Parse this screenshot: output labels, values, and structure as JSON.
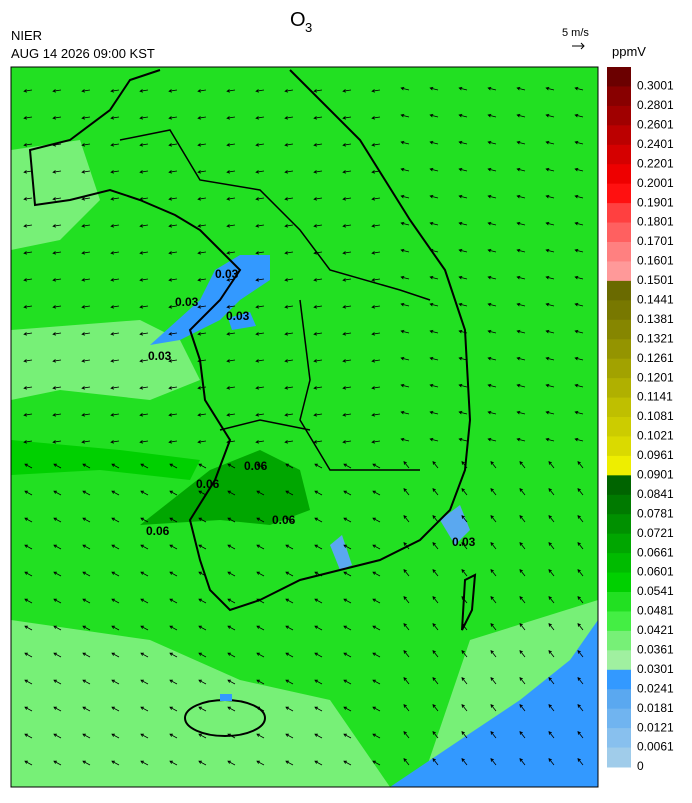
{
  "header": {
    "title": "O",
    "title_subscript": "3",
    "agency": "NIER",
    "timestamp": "AUG 14 2026 09:00 KST",
    "wind_scale": "5 m/s",
    "unit": "ppmV"
  },
  "colorbar": [
    {
      "label": "0.3001",
      "color": "#6b0000"
    },
    {
      "label": "0.2801",
      "color": "#880000"
    },
    {
      "label": "0.2601",
      "color": "#a00000"
    },
    {
      "label": "0.2401",
      "color": "#bb0000"
    },
    {
      "label": "0.2201",
      "color": "#d50000"
    },
    {
      "label": "0.2001",
      "color": "#ee0000"
    },
    {
      "label": "0.1901",
      "color": "#ff1010"
    },
    {
      "label": "0.1801",
      "color": "#ff4040"
    },
    {
      "label": "0.1701",
      "color": "#ff6060"
    },
    {
      "label": "0.1601",
      "color": "#ff8080"
    },
    {
      "label": "0.1501",
      "color": "#ff9999"
    },
    {
      "label": "0.1441",
      "color": "#6a6a00"
    },
    {
      "label": "0.1381",
      "color": "#787800"
    },
    {
      "label": "0.1321",
      "color": "#868600"
    },
    {
      "label": "0.1261",
      "color": "#949400"
    },
    {
      "label": "0.1201",
      "color": "#a2a200"
    },
    {
      "label": "0.1141",
      "color": "#b0b000"
    },
    {
      "label": "0.1081",
      "color": "#bfbf00"
    },
    {
      "label": "0.1021",
      "color": "#cccc00"
    },
    {
      "label": "0.0961",
      "color": "#dada00"
    },
    {
      "label": "0.0901",
      "color": "#eeee00"
    },
    {
      "label": "0.0841",
      "color": "#006400"
    },
    {
      "label": "0.0781",
      "color": "#007a00"
    },
    {
      "label": "0.0721",
      "color": "#009000"
    },
    {
      "label": "0.0661",
      "color": "#00a600"
    },
    {
      "label": "0.0601",
      "color": "#00bb00"
    },
    {
      "label": "0.0541",
      "color": "#00d000"
    },
    {
      "label": "0.0481",
      "color": "#22e022"
    },
    {
      "label": "0.0421",
      "color": "#44ee44"
    },
    {
      "label": "0.0361",
      "color": "#77f077"
    },
    {
      "label": "0.0301",
      "color": "#a0f0a0"
    },
    {
      "label": "0.0241",
      "color": "#3399ff"
    },
    {
      "label": "0.0181",
      "color": "#5aa8f0"
    },
    {
      "label": "0.0121",
      "color": "#70b4f0"
    },
    {
      "label": "0.0061",
      "color": "#88c0ee"
    },
    {
      "label": "0",
      "color": "#a0ccea"
    }
  ],
  "map": {
    "contour_labels": [
      "0.03",
      "0.03",
      "0.03",
      "0.03",
      "0.06",
      "0.06",
      "0.06",
      "0.06",
      "0.03"
    ]
  }
}
